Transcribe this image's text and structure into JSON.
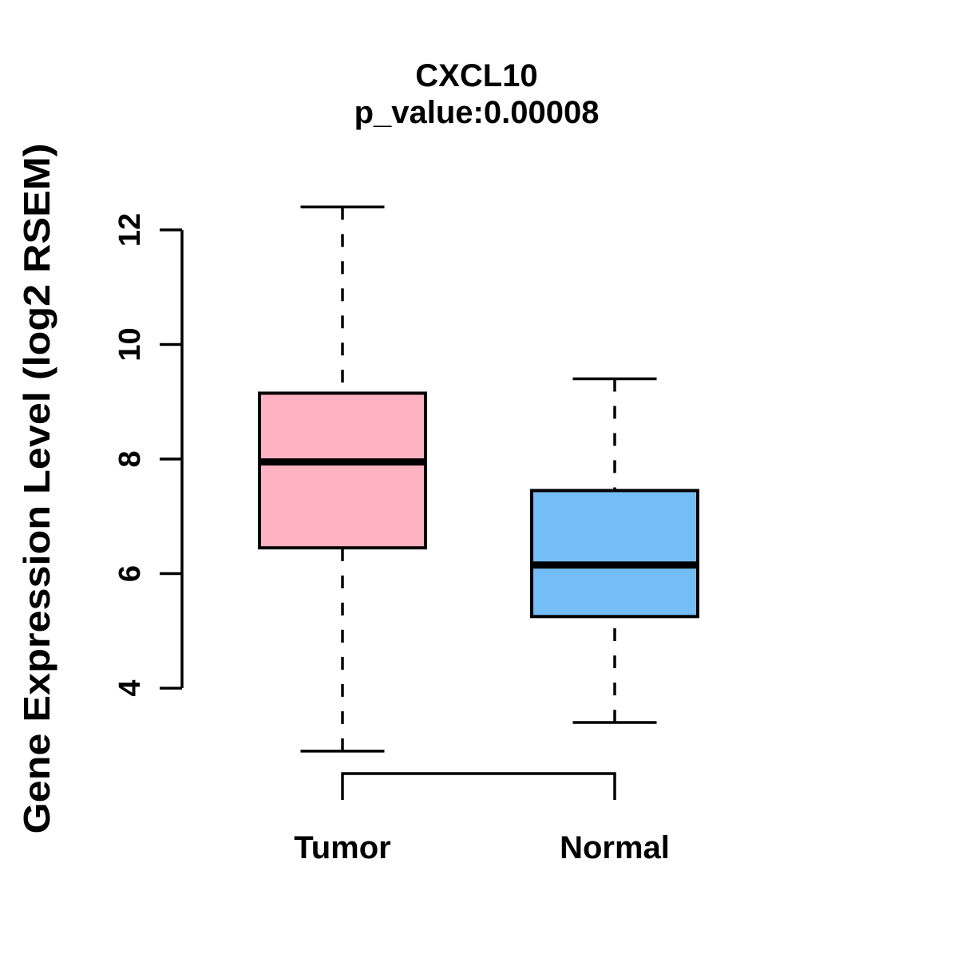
{
  "page": {
    "background": "#FFFFFF"
  },
  "chart_data": {
    "type": "boxplot",
    "title": "CXCL10",
    "subtitle": "p_value:0.00008",
    "ylabel": "Gene Expression Level (log2 RSEM)",
    "xlabel": "",
    "categories": [
      "Tumor",
      "Normal"
    ],
    "y_axis": {
      "ticks": [
        4,
        6,
        8,
        10,
        12
      ],
      "tick_labels": [
        "4",
        "6",
        "8",
        "10",
        "12"
      ],
      "min": 4,
      "max": 12
    },
    "series": [
      {
        "name": "Tumor",
        "box_color": "#FFB2C1",
        "stats": {
          "lower_whisker": 2.9,
          "q1": 6.45,
          "median": 7.95,
          "q3": 9.15,
          "upper_whisker": 12.4
        }
      },
      {
        "name": "Normal",
        "box_color": "#75BEF5",
        "stats": {
          "lower_whisker": 3.4,
          "q1": 5.25,
          "median": 6.15,
          "q3": 7.45,
          "upper_whisker": 9.4
        }
      }
    ],
    "stroke_color": "#000000",
    "text_color": "#000000",
    "grid": false,
    "legend": "none"
  }
}
